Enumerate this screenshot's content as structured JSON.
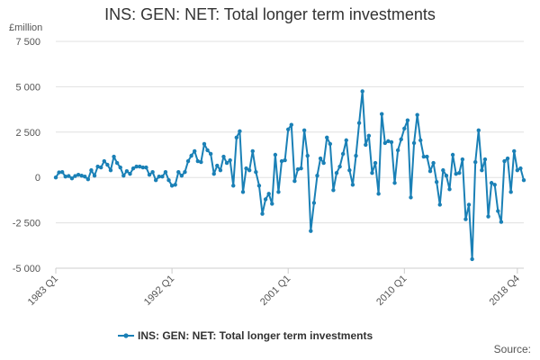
{
  "title": "INS: GEN: NET: Total longer term investments",
  "source_label": "Source:",
  "chart_data": {
    "type": "line",
    "title": "INS: GEN: NET: Total longer term investments",
    "unit_label": "£million",
    "ylim": [
      -5000,
      7500
    ],
    "yticks": [
      -5000,
      -2500,
      0,
      2500,
      5000,
      7500
    ],
    "ytick_labels": [
      "-5 000",
      "-2 500",
      "0",
      "2 500",
      "5 000",
      "7 500"
    ],
    "xtick_labels": [
      "1983 Q1",
      "1992 Q1",
      "2001 Q1",
      "2010 Q1",
      "2018 Q4"
    ],
    "xtick_positions": [
      0,
      36,
      72,
      108,
      143
    ],
    "grid": "horizontal",
    "legend_position": "bottom",
    "color": "#1a80b6",
    "series": [
      {
        "name": "INS: GEN: NET: Total longer term investments",
        "values": [
          0,
          280,
          300,
          50,
          80,
          -50,
          80,
          150,
          100,
          50,
          -100,
          400,
          100,
          600,
          550,
          900,
          700,
          400,
          1150,
          800,
          550,
          100,
          350,
          200,
          500,
          600,
          600,
          550,
          550,
          150,
          300,
          -150,
          50,
          50,
          300,
          -150,
          -450,
          -400,
          300,
          100,
          300,
          900,
          1200,
          1450,
          900,
          850,
          1850,
          1500,
          1300,
          200,
          650,
          400,
          1150,
          800,
          950,
          -450,
          2200,
          2550,
          -800,
          500,
          400,
          1450,
          300,
          -450,
          -2000,
          -1200,
          -900,
          -1450,
          1250,
          -800,
          900,
          950,
          2650,
          2900,
          -200,
          450,
          500,
          2600,
          1200,
          -2950,
          -1400,
          100,
          1050,
          800,
          2200,
          1850,
          -700,
          250,
          600,
          1300,
          2050,
          400,
          -400,
          1200,
          3000,
          4750,
          1800,
          2300,
          250,
          800,
          -900,
          3500,
          1900,
          2000,
          1950,
          -300,
          1500,
          2100,
          2700,
          3150,
          -1100,
          1900,
          3450,
          2050,
          1150,
          1150,
          350,
          800,
          -250,
          -1500,
          400,
          100,
          -650,
          1250,
          200,
          250,
          1000,
          -2300,
          -1500,
          -4500,
          850,
          2600,
          400,
          1000,
          -2150,
          -300,
          -400,
          -1850,
          -2450,
          900,
          1050,
          -800,
          1450,
          400,
          500,
          -150
        ]
      }
    ]
  }
}
